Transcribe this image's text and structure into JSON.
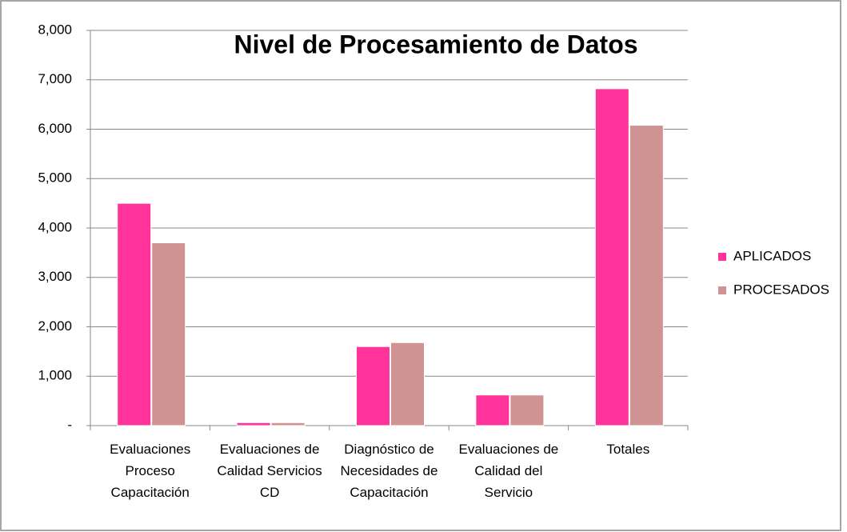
{
  "chart_data": {
    "type": "bar",
    "title": "Nivel de Procesamiento de Datos",
    "categories": [
      "Evaluaciones Proceso Capacitación",
      "Evaluaciones de Calidad Servicios CD",
      "Diagnóstico de Necesidades de Capacitación",
      "Evaluaciones de Calidad del Servicio",
      "Totales"
    ],
    "series": [
      {
        "name": "APLICADOS",
        "color": "#ff3399",
        "values": [
          4500,
          60,
          1600,
          620,
          6820
        ]
      },
      {
        "name": "PROCESADOS",
        "color": "#d09393",
        "values": [
          3700,
          60,
          1680,
          620,
          6080
        ]
      }
    ],
    "ylim": [
      0,
      8000
    ],
    "yticks": [
      {
        "value": 0,
        "label": "-"
      },
      {
        "value": 1000,
        "label": "1,000"
      },
      {
        "value": 2000,
        "label": "2,000"
      },
      {
        "value": 3000,
        "label": "3,000"
      },
      {
        "value": 4000,
        "label": "4,000"
      },
      {
        "value": 5000,
        "label": "5,000"
      },
      {
        "value": 6000,
        "label": "6,000"
      },
      {
        "value": 7000,
        "label": "7,000"
      },
      {
        "value": 8000,
        "label": "8,000"
      }
    ],
    "grid": true,
    "legend": "right"
  }
}
